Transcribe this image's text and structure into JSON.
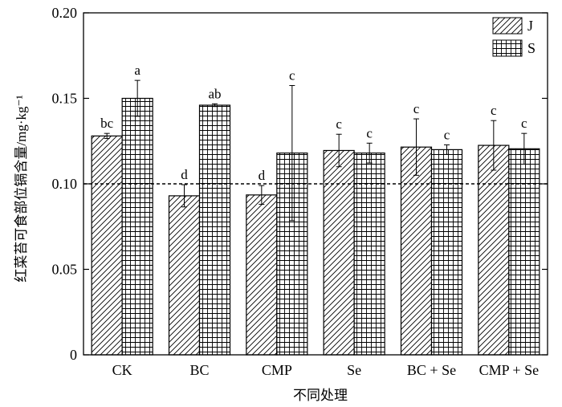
{
  "chart_data": {
    "type": "bar",
    "xlabel": "不同处理",
    "ylabel": "红菜苔可食部位镉含量/mg·kg⁻¹",
    "ylim": [
      0,
      0.2
    ],
    "yticks": [
      "0",
      "0.05",
      "0.10",
      "0.15",
      "0.20"
    ],
    "categories": [
      "CK",
      "BC",
      "CMP",
      "Se",
      "BC + Se",
      "CMP + Se"
    ],
    "series": [
      {
        "name": "J",
        "pattern": "diagonal-hatch",
        "values": [
          0.128,
          0.093,
          0.0935,
          0.1195,
          0.1215,
          0.1225
        ],
        "errors": [
          0.0015,
          0.0065,
          0.0055,
          0.0095,
          0.0165,
          0.0145
        ],
        "labels": [
          "bc",
          "d",
          "d",
          "c",
          "c",
          "c"
        ]
      },
      {
        "name": "S",
        "pattern": "grid-hatch",
        "values": [
          0.15,
          0.146,
          0.118,
          0.118,
          0.12,
          0.1205
        ],
        "errors": [
          0.0105,
          0.0008,
          0.0395,
          0.0058,
          0.0028,
          0.009
        ],
        "labels": [
          "a",
          "ab",
          "c",
          "c",
          "c",
          "c"
        ]
      }
    ],
    "reference_line": 0.1,
    "legend": "top-right",
    "grid": false
  }
}
